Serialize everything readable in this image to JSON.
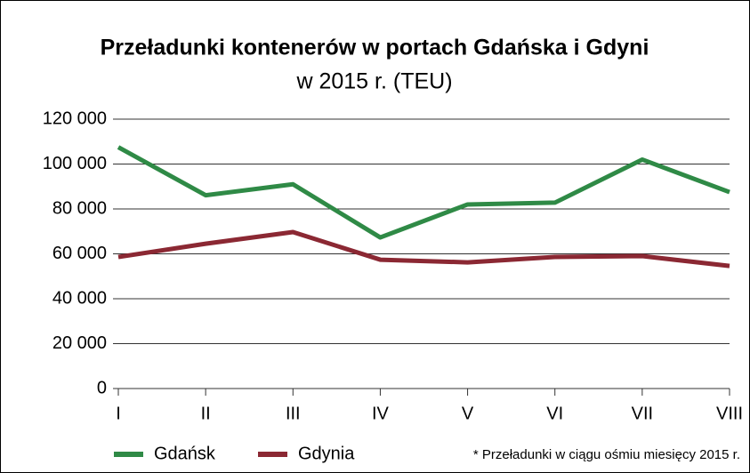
{
  "chart_data": {
    "type": "line",
    "title": "Przeładunki kontenerów w portach Gdańska i Gdyni",
    "subtitle": "w 2015 r. (TEU)",
    "annotation": "* Przeładunki w ciągu ośmiu miesięcy 2015 r.",
    "categories": [
      "I",
      "II",
      "III",
      "IV",
      "V",
      "VI",
      "VII",
      "VIII"
    ],
    "series": [
      {
        "name": "Gdańsk",
        "color": "#2f8a46",
        "values": [
          107500,
          86100,
          91000,
          67300,
          82000,
          82800,
          102000,
          87500
        ]
      },
      {
        "name": "Gdynia",
        "color": "#8b2833",
        "values": [
          58600,
          64500,
          69700,
          57400,
          56200,
          58600,
          59000,
          54600
        ]
      }
    ],
    "ylim": [
      0,
      120000
    ],
    "yticks": [
      0,
      {
        "value": 20000,
        "label": "20 000"
      },
      {
        "value": 40000,
        "label": "40 000"
      },
      {
        "value": 60000,
        "label": "60 000"
      },
      {
        "value": 80000,
        "label": "80 000"
      },
      {
        "value": 100000,
        "label": "100 000"
      },
      {
        "value": 120000,
        "label": "120 000"
      }
    ],
    "grid": true,
    "legend": "bottom"
  }
}
